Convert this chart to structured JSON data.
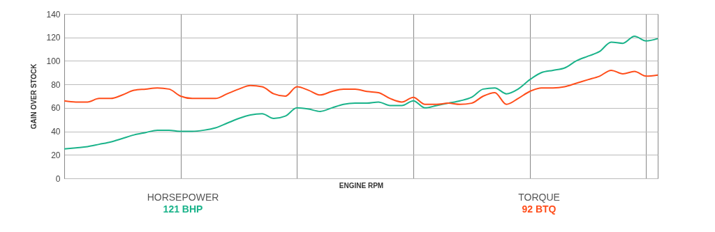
{
  "chart_data": {
    "type": "line",
    "xlabel": "ENGINE RPM",
    "ylabel": "GAIN OVER STOCK",
    "categories": [
      null,
      null,
      null,
      null,
      null,
      null,
      null,
      null,
      null,
      null,
      null,
      null,
      null,
      null,
      null,
      null,
      null,
      null,
      null,
      null,
      null,
      null,
      null,
      null,
      null,
      null,
      null,
      null,
      null,
      null,
      null,
      null,
      null,
      null,
      null,
      null,
      null,
      null,
      null,
      null,
      null,
      null,
      null,
      null,
      null,
      null,
      null,
      null,
      null,
      null,
      null,
      null
    ],
    "series": [
      {
        "color": "#1ab38a",
        "values": [
          25,
          26,
          27,
          29,
          31,
          34,
          37,
          39,
          41,
          41,
          40,
          40,
          41,
          43,
          47,
          51,
          54,
          55,
          51,
          53,
          60,
          59,
          57,
          60,
          63,
          64,
          64,
          65,
          62,
          62,
          66,
          60,
          62,
          64,
          66,
          69,
          76,
          77,
          72,
          76,
          84,
          90,
          92,
          94,
          100,
          104,
          108,
          116,
          115,
          121,
          117,
          119
        ]
      },
      {
        "color": "#ff4d1a",
        "values": [
          66,
          65,
          65,
          68,
          68,
          71,
          75,
          76,
          77,
          76,
          70,
          68,
          68,
          68,
          72,
          76,
          79,
          78,
          72,
          70,
          78,
          75,
          71,
          74,
          76,
          76,
          74,
          73,
          68,
          65,
          69,
          63,
          63,
          64,
          63,
          64,
          70,
          73,
          63,
          68,
          74,
          77,
          77,
          78,
          81,
          84,
          87,
          92,
          89,
          91,
          87,
          88
        ]
      }
    ],
    "annotations": [
      "HORSEPOWER",
      "121 BHP",
      "TORQUE",
      "92 BTQ"
    ],
    "ylim": [
      0,
      140
    ],
    "yticks": [
      0,
      20,
      40,
      60,
      80,
      100,
      120,
      140
    ],
    "grid": true,
    "marker": "none",
    "line_style": "solid"
  }
}
